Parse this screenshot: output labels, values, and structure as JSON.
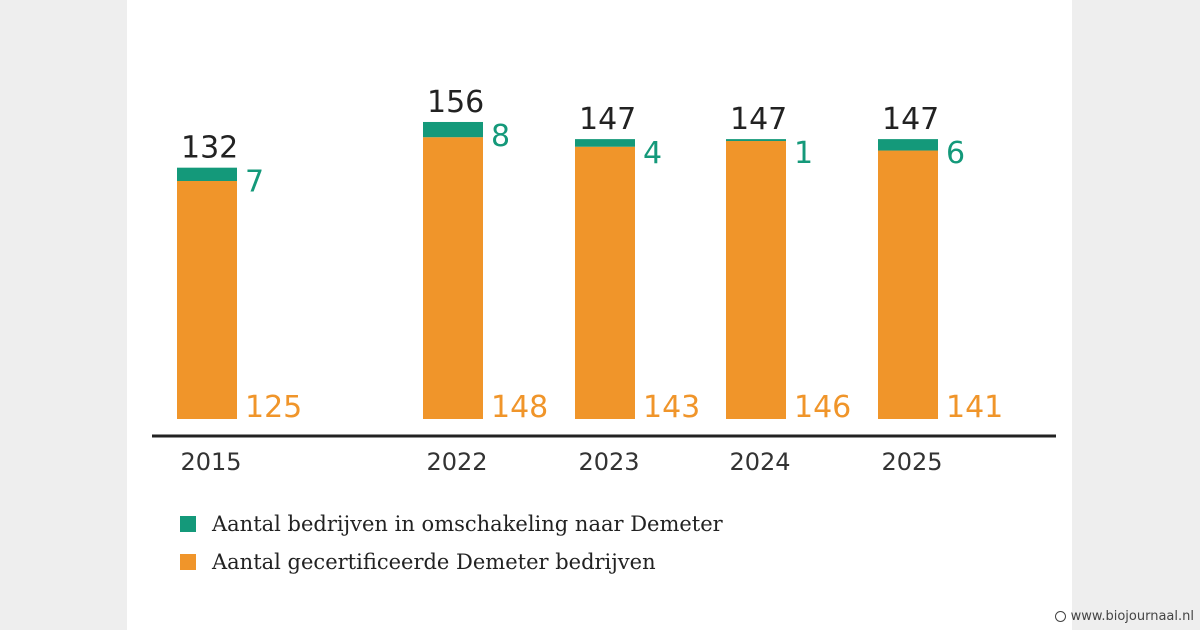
{
  "chart_data": {
    "type": "bar",
    "stacked": true,
    "categories": [
      "2015",
      "2022",
      "2023",
      "2024",
      "2025"
    ],
    "totals": [
      132,
      156,
      147,
      147,
      147
    ],
    "series": [
      {
        "name": "Aantal gecertificeerde Demeter bedrijven",
        "values": [
          125,
          148,
          143,
          146,
          141
        ],
        "color": "#f0952a"
      },
      {
        "name": "Aantal bedrijven in omschakeling naar Demeter",
        "values": [
          7,
          8,
          4,
          1,
          6
        ],
        "color": "#14997a"
      }
    ]
  },
  "legend": {
    "items": [
      {
        "label": "Aantal bedrijven in omschakeling naar Demeter",
        "color": "#14997a"
      },
      {
        "label": "Aantal gecertificeerde Demeter bedrijven",
        "color": "#f0952a"
      }
    ]
  },
  "credit": {
    "text": "www.biojournaal.nl",
    "icon": "globe-icon"
  }
}
